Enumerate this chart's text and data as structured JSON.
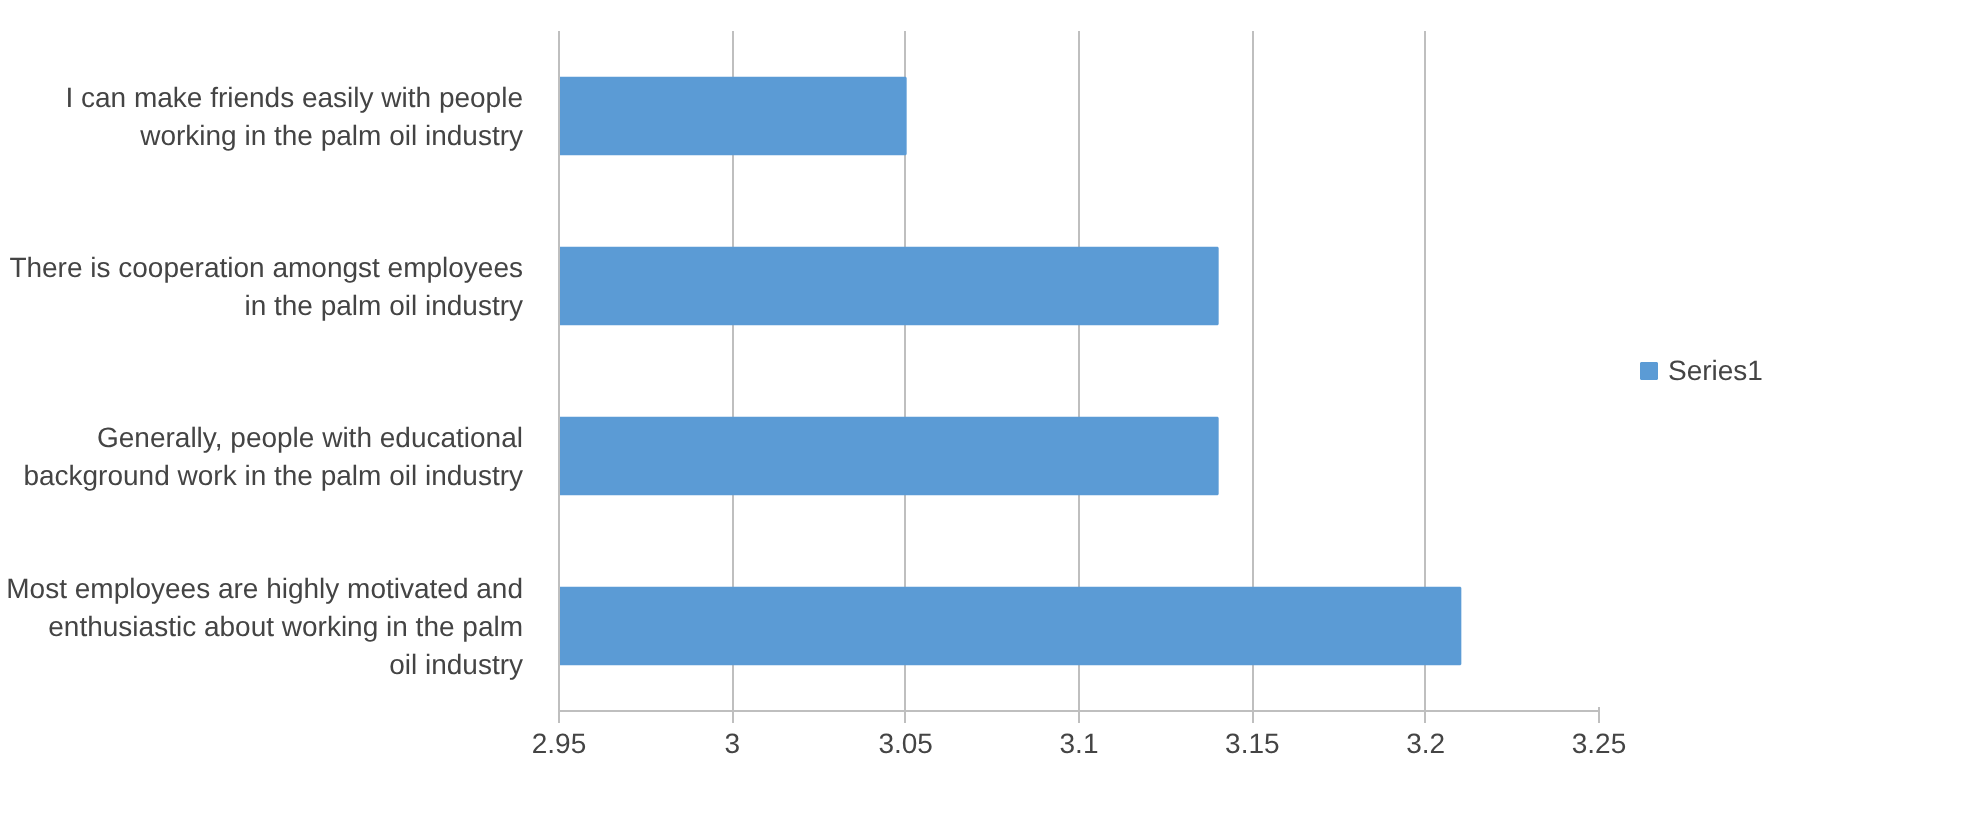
{
  "chart_data": {
    "type": "bar",
    "orientation": "horizontal",
    "categories": [
      "I can make friends easily with people working in the palm oil industry",
      "There is cooperation amongst employees in the palm oil industry",
      "Generally, people with educational background work in the palm oil industry",
      "Most employees are highly motivated and enthusiastic about working in the palm oil industry"
    ],
    "series": [
      {
        "name": "Series1",
        "color": "#5b9bd5",
        "values": [
          3.05,
          3.14,
          3.14,
          3.21
        ]
      }
    ],
    "xlim": [
      2.95,
      3.25
    ],
    "xticks": [
      2.95,
      3,
      3.05,
      3.1,
      3.15,
      3.2,
      3.25
    ],
    "grid": "x",
    "legend": "right"
  }
}
